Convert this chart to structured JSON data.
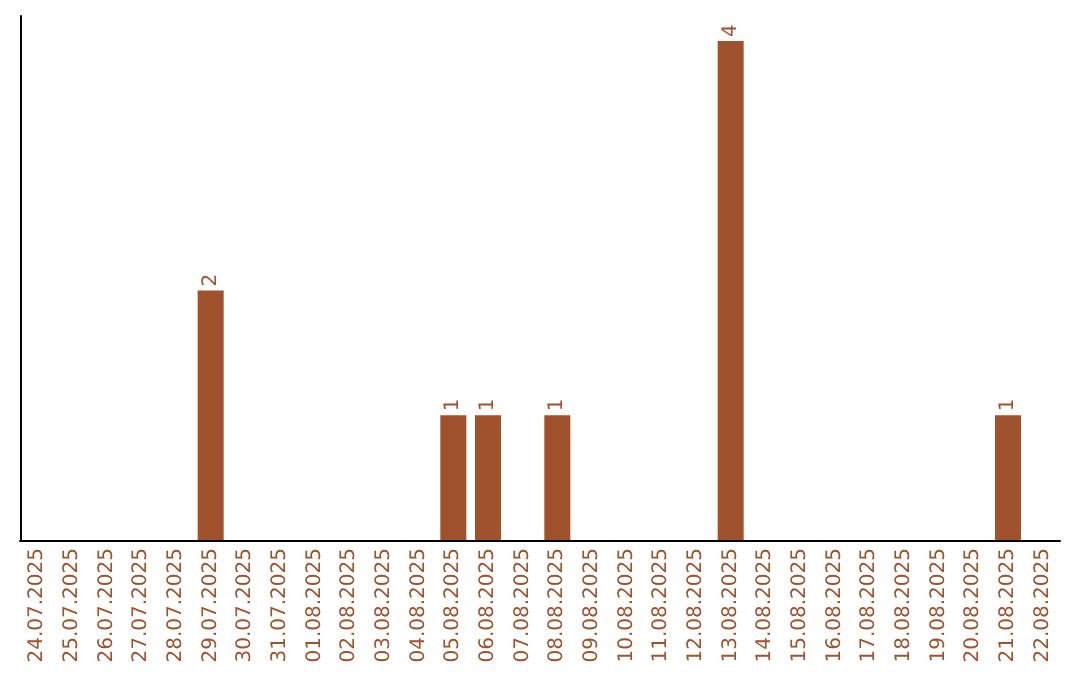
{
  "chart_data": {
    "type": "bar",
    "categories": [
      "24.07.2025",
      "25.07.2025",
      "26.07.2025",
      "27.07.2025",
      "28.07.2025",
      "29.07.2025",
      "30.07.2025",
      "31.07.2025",
      "01.08.2025",
      "02.08.2025",
      "03.08.2025",
      "04.08.2025",
      "05.08.2025",
      "06.08.2025",
      "07.08.2025",
      "08.08.2025",
      "09.08.2025",
      "10.08.2025",
      "11.08.2025",
      "12.08.2025",
      "13.08.2025",
      "14.08.2025",
      "15.08.2025",
      "16.08.2025",
      "17.08.2025",
      "18.08.2025",
      "19.08.2025",
      "20.08.2025",
      "21.08.2025",
      "22.08.2025"
    ],
    "values": [
      0,
      0,
      0,
      0,
      0,
      2,
      0,
      0,
      0,
      0,
      0,
      0,
      1,
      1,
      0,
      1,
      0,
      0,
      0,
      0,
      4,
      0,
      0,
      0,
      0,
      0,
      0,
      0,
      1,
      0
    ],
    "value_labels": [
      null,
      null,
      null,
      null,
      null,
      "2",
      null,
      null,
      null,
      null,
      null,
      null,
      "1",
      "1",
      null,
      "1",
      null,
      null,
      null,
      null,
      "4",
      null,
      null,
      null,
      null,
      null,
      null,
      null,
      "1",
      null
    ],
    "color": "#a0522d",
    "ylim": [
      0,
      4.2
    ],
    "tick_labels": "x",
    "grid": false
  }
}
